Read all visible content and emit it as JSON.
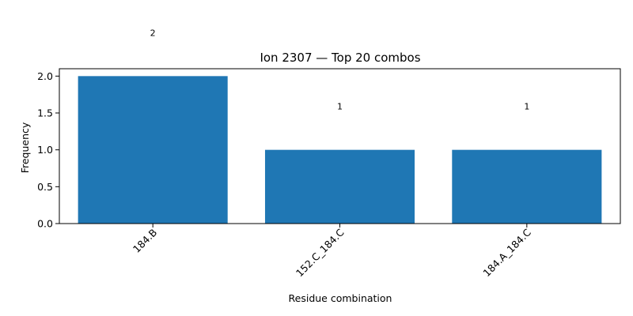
{
  "chart_data": {
    "type": "bar",
    "title": "Ion 2307 — Top 20 combos",
    "xlabel": "Residue combination",
    "ylabel": "Frequency",
    "categories": [
      "184.B",
      "152.C_184.C",
      "184.A_184.C"
    ],
    "values": [
      2,
      1,
      1
    ],
    "data_labels": [
      "2",
      "1",
      "1"
    ],
    "ylim": [
      0,
      2.1
    ],
    "yticks": [
      0.0,
      0.5,
      1.0,
      1.5,
      2.0
    ],
    "ytick_labels": [
      "0.0",
      "0.5",
      "1.0",
      "1.5",
      "2.0"
    ],
    "xtick_rotation": 45,
    "grid": false,
    "bar_color": "#1f77b4"
  }
}
